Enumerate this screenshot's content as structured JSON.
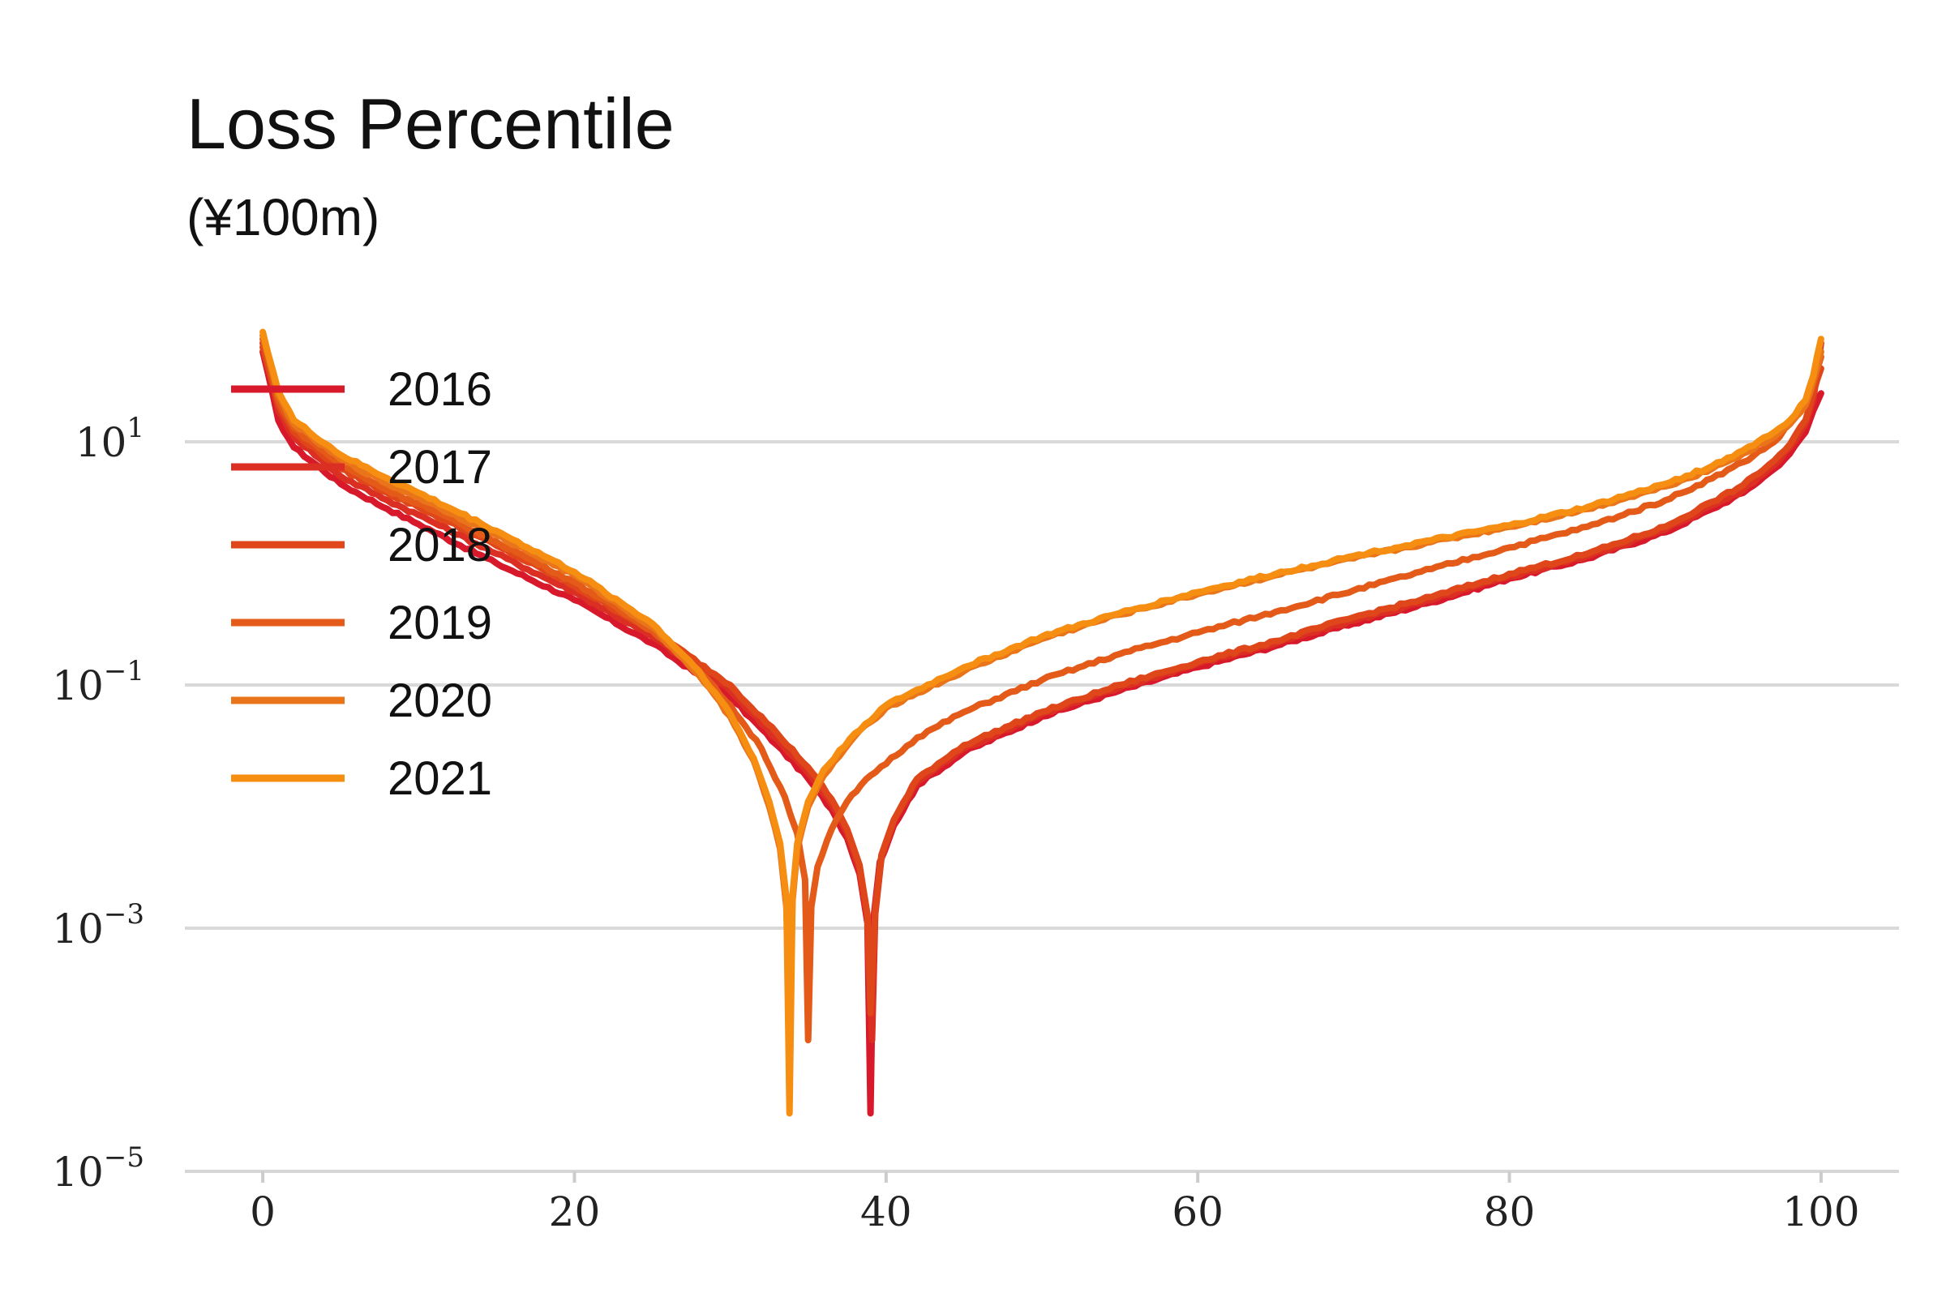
{
  "chart_data": {
    "type": "line",
    "title": "Loss Percentile",
    "subtitle": "(¥100m)",
    "xlabel": "",
    "ylabel": "",
    "xlim": [
      -5,
      105
    ],
    "ylim": [
      1e-05,
      100
    ],
    "y_scale": "log",
    "x_ticks": [
      {
        "value": 0,
        "label": "0"
      },
      {
        "value": 20,
        "label": "20"
      },
      {
        "value": 40,
        "label": "40"
      },
      {
        "value": 60,
        "label": "60"
      },
      {
        "value": 80,
        "label": "80"
      },
      {
        "value": 100,
        "label": "100"
      }
    ],
    "y_ticks": [
      {
        "value": 10,
        "base": "10",
        "exp": "1"
      },
      {
        "value": 0.1,
        "base": "10",
        "exp": "−1"
      },
      {
        "value": 0.001,
        "base": "10",
        "exp": "−3"
      },
      {
        "value": 1e-05,
        "base": "10",
        "exp": "−5"
      }
    ],
    "grid": "horizontal",
    "legend_position": "top-left",
    "series": [
      {
        "name": "2016",
        "color": "#d7192b",
        "x": [
          0,
          1,
          2,
          5,
          8,
          10,
          15,
          20,
          25,
          30,
          33,
          35,
          36.5,
          37.5,
          38.3,
          38.8,
          39,
          39.2,
          39.6,
          40.5,
          42,
          45,
          50,
          55,
          60,
          65,
          70,
          75,
          80,
          85,
          90,
          93,
          95,
          97,
          98,
          99,
          99.5,
          100
        ],
        "y": [
          55,
          15,
          9,
          4.5,
          2.8,
          2.1,
          1.0,
          0.5,
          0.22,
          0.08,
          0.032,
          0.017,
          0.0095,
          0.0055,
          0.0028,
          0.0011,
          3e-05,
          0.0012,
          0.0035,
          0.007,
          0.015,
          0.028,
          0.055,
          0.09,
          0.14,
          0.21,
          0.32,
          0.48,
          0.75,
          1.1,
          1.8,
          2.8,
          3.8,
          6.0,
          8.0,
          12,
          18,
          25
        ]
      },
      {
        "name": "2017",
        "color": "#db2f23",
        "x": [
          0,
          1,
          2,
          5,
          8,
          10,
          15,
          20,
          25,
          30,
          33,
          35,
          36.5,
          37.5,
          38.3,
          38.8,
          39.1,
          39.3,
          39.7,
          40.5,
          42,
          45,
          50,
          55,
          60,
          65,
          70,
          75,
          80,
          85,
          90,
          93,
          95,
          97,
          98,
          99,
          99.5,
          100
        ],
        "y": [
          65,
          18,
          11,
          5.2,
          3.3,
          2.5,
          1.2,
          0.58,
          0.25,
          0.09,
          0.036,
          0.019,
          0.0105,
          0.006,
          0.003,
          0.0012,
          0.00012,
          0.0013,
          0.0038,
          0.0075,
          0.016,
          0.03,
          0.058,
          0.095,
          0.15,
          0.22,
          0.34,
          0.5,
          0.78,
          1.15,
          1.9,
          3.0,
          4.0,
          6.5,
          9.0,
          14,
          22,
          65
        ]
      },
      {
        "name": "2018",
        "color": "#df4619",
        "x": [
          0,
          1,
          2,
          5,
          8,
          10,
          15,
          20,
          25,
          30,
          33,
          35,
          36.5,
          37.5,
          38.3,
          38.8,
          39,
          39.3,
          39.7,
          40.5,
          42,
          45,
          50,
          55,
          60,
          65,
          70,
          75,
          80,
          85,
          90,
          93,
          95,
          97,
          98,
          99,
          99.5,
          100
        ],
        "y": [
          60,
          20,
          12,
          6.0,
          3.8,
          2.9,
          1.4,
          0.65,
          0.28,
          0.1,
          0.04,
          0.021,
          0.0115,
          0.0065,
          0.0033,
          0.0013,
          0.0002,
          0.0014,
          0.004,
          0.0078,
          0.017,
          0.032,
          0.06,
          0.1,
          0.155,
          0.23,
          0.36,
          0.53,
          0.82,
          1.2,
          2.0,
          3.2,
          4.4,
          7.0,
          9.5,
          15,
          25,
          40
        ]
      },
      {
        "name": "2019",
        "color": "#e35a19",
        "x": [
          0,
          1,
          2,
          5,
          8,
          10,
          15,
          20,
          25,
          28,
          30,
          32,
          33.5,
          34.3,
          34.8,
          35,
          35.2,
          35.6,
          36.5,
          37.5,
          39,
          42,
          45,
          50,
          55,
          60,
          65,
          70,
          75,
          80,
          85,
          90,
          93,
          95,
          97,
          98,
          99,
          99.5,
          100
        ],
        "y": [
          70,
          22,
          13,
          6.5,
          4.0,
          3.1,
          1.5,
          0.7,
          0.28,
          0.13,
          0.068,
          0.03,
          0.012,
          0.006,
          0.0025,
          0.00012,
          0.0015,
          0.0032,
          0.0065,
          0.011,
          0.018,
          0.037,
          0.06,
          0.11,
          0.18,
          0.27,
          0.4,
          0.6,
          0.9,
          1.35,
          2.0,
          3.3,
          5.0,
          6.8,
          10,
          14,
          20,
          30,
          50
        ]
      },
      {
        "name": "2020",
        "color": "#e9741a",
        "x": [
          0,
          1,
          2,
          5,
          8,
          10,
          15,
          20,
          25,
          28,
          30,
          31.5,
          32.5,
          33.2,
          33.6,
          33.8,
          34,
          34.3,
          35,
          36,
          38,
          40,
          45,
          50,
          55,
          60,
          65,
          70,
          75,
          80,
          85,
          90,
          93,
          95,
          97,
          98,
          99,
          99.5,
          100
        ],
        "y": [
          75,
          24,
          14,
          7.2,
          4.5,
          3.5,
          1.7,
          0.8,
          0.3,
          0.12,
          0.055,
          0.024,
          0.01,
          0.0045,
          0.0015,
          0.0002,
          0.0017,
          0.0045,
          0.01,
          0.018,
          0.038,
          0.065,
          0.13,
          0.24,
          0.38,
          0.56,
          0.8,
          1.1,
          1.5,
          2.0,
          2.8,
          4.3,
          6.0,
          8.0,
          11,
          14,
          20,
          32,
          55
        ]
      },
      {
        "name": "2021",
        "color": "#f68e12",
        "x": [
          0,
          1,
          2,
          5,
          8,
          10,
          15,
          20,
          25,
          28,
          30,
          31.5,
          32.5,
          33.2,
          33.6,
          33.8,
          34,
          34.3,
          35,
          36,
          38,
          40,
          45,
          50,
          55,
          60,
          65,
          70,
          75,
          80,
          85,
          90,
          93,
          95,
          97,
          98,
          99,
          99.5,
          100
        ],
        "y": [
          80,
          26,
          15,
          7.8,
          5.0,
          3.8,
          1.85,
          0.85,
          0.32,
          0.13,
          0.058,
          0.025,
          0.011,
          0.005,
          0.0018,
          3e-05,
          0.0019,
          0.005,
          0.011,
          0.02,
          0.04,
          0.068,
          0.14,
          0.25,
          0.39,
          0.58,
          0.82,
          1.15,
          1.55,
          2.05,
          2.9,
          4.5,
          6.3,
          8.5,
          12,
          15,
          22,
          35,
          70
        ]
      }
    ]
  }
}
